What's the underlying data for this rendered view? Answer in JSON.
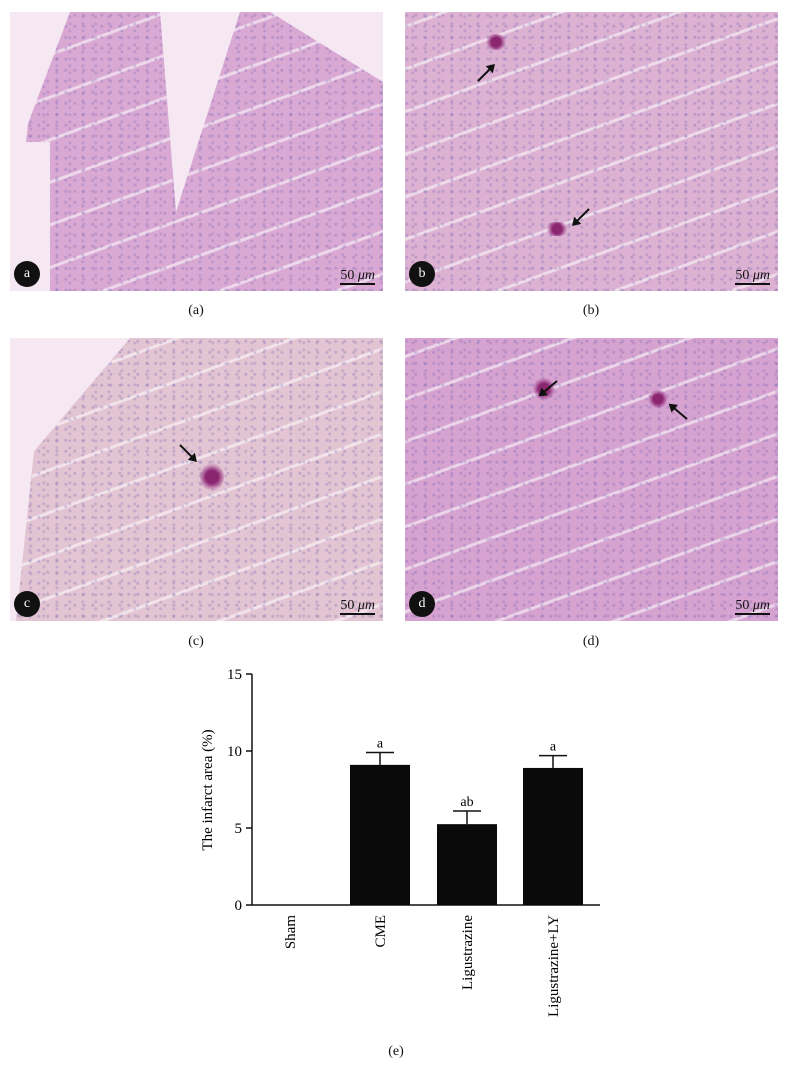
{
  "panels": [
    {
      "id": "a",
      "badge": "a",
      "caption": "(a)",
      "scale": "50",
      "unit": "μm"
    },
    {
      "id": "b",
      "badge": "b",
      "caption": "(b)",
      "scale": "50",
      "unit": "μm"
    },
    {
      "id": "c",
      "badge": "c",
      "caption": "(c)",
      "scale": "50",
      "unit": "μm"
    },
    {
      "id": "d",
      "badge": "d",
      "caption": "(d)",
      "scale": "50",
      "unit": "μm"
    }
  ],
  "chart_caption": "(e)",
  "chart_data": {
    "type": "bar",
    "categories": [
      "Sham",
      "CME",
      "Ligustrazine",
      "Ligustrazine+LY"
    ],
    "values": [
      0,
      9.1,
      5.25,
      8.9
    ],
    "error_upper": [
      0,
      9.9,
      6.1,
      9.7
    ],
    "annotations": [
      "",
      "a",
      "ab",
      "a"
    ],
    "ylabel": "The infarct area (%)",
    "xlabel": "",
    "ylim": [
      0,
      15
    ],
    "yticks": [
      0,
      5,
      10,
      15
    ],
    "bar_color": "#0a0a0a",
    "grid": false
  }
}
